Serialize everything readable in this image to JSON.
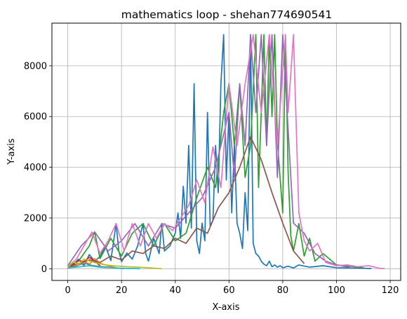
{
  "chart_data": {
    "type": "line",
    "title": "mathematics loop - shehan774690541",
    "xlabel": "X-axis",
    "ylabel": "Y-axis",
    "xlim": [
      -5.9,
      123.9
    ],
    "ylim": [
      -461,
      9682
    ],
    "xticks": [
      0,
      20,
      40,
      60,
      80,
      100,
      120
    ],
    "yticks": [
      0,
      2000,
      4000,
      6000,
      8000
    ],
    "grid": true,
    "legend": "none",
    "palette": [
      "#1f77b4",
      "#ff7f0e",
      "#2ca02c",
      "#d62728",
      "#9467bd",
      "#8c564b",
      "#e377c2",
      "#7f7f7f",
      "#bcbd22",
      "#17becf"
    ],
    "series": [
      {
        "color": "#1f77b4",
        "x": [
          0,
          2,
          4,
          6,
          8,
          10,
          12,
          14,
          16,
          18,
          19,
          20,
          22,
          24,
          26,
          28,
          29,
          30,
          32,
          34,
          35,
          36,
          38,
          40,
          41,
          42,
          43,
          44,
          45,
          46,
          47,
          48,
          49,
          50,
          51,
          52,
          53,
          54,
          55,
          56,
          57,
          58,
          59,
          60,
          61,
          62,
          63,
          64,
          65,
          66,
          67,
          68,
          69,
          70,
          71,
          72,
          73,
          74,
          75,
          76,
          77,
          78,
          79,
          80,
          82,
          84,
          86,
          90,
          95,
          100,
          105,
          110,
          113
        ],
        "y": [
          80,
          150,
          380,
          120,
          560,
          300,
          480,
          900,
          320,
          1780,
          700,
          280,
          620,
          380,
          900,
          1780,
          600,
          300,
          1200,
          600,
          1780,
          700,
          900,
          1400,
          2200,
          1200,
          3250,
          1800,
          4860,
          1600,
          7290,
          1100,
          600,
          1800,
          1100,
          6160,
          1700,
          1900,
          4860,
          3000,
          7290,
          9230,
          3500,
          6160,
          2200,
          4860,
          1800,
          1400,
          800,
          3000,
          1500,
          9230,
          1000,
          600,
          500,
          300,
          180,
          120,
          300,
          80,
          150,
          60,
          120,
          40,
          100,
          30,
          150,
          60,
          120,
          40,
          30,
          20,
          10
        ]
      },
      {
        "color": "#ff7f0e",
        "x": [
          0,
          2,
          3,
          4,
          6,
          8,
          10,
          12,
          14,
          16,
          18
        ],
        "y": [
          60,
          120,
          260,
          150,
          300,
          180,
          400,
          220,
          150,
          90,
          40
        ]
      },
      {
        "color": "#2ca02c",
        "x": [
          0,
          4,
          8,
          10,
          12,
          16,
          20,
          24,
          28,
          32,
          36,
          40,
          44,
          48,
          52,
          55,
          58,
          60,
          62,
          64,
          66,
          68,
          70,
          71,
          72,
          73,
          74,
          75,
          76,
          77,
          78,
          79,
          80,
          81,
          82,
          83,
          84,
          86,
          88,
          90,
          92,
          95,
          100,
          105,
          110
        ],
        "y": [
          100,
          300,
          900,
          1450,
          400,
          1200,
          500,
          1400,
          1780,
          900,
          1780,
          1100,
          1400,
          2800,
          4000,
          3200,
          6160,
          7290,
          4860,
          7290,
          3600,
          4860,
          9230,
          3200,
          6160,
          9230,
          4860,
          9230,
          6000,
          9230,
          5000,
          3600,
          2200,
          9230,
          3800,
          1300,
          700,
          1780,
          500,
          1200,
          300,
          600,
          150,
          100,
          40
        ]
      },
      {
        "color": "#d62728",
        "x": [
          0,
          2,
          4,
          6,
          8,
          10,
          12
        ],
        "y": [
          50,
          160,
          330,
          280,
          450,
          300,
          120
        ]
      },
      {
        "color": "#9467bd",
        "x": [
          0,
          5,
          10,
          15,
          20,
          25,
          30,
          35,
          40,
          45,
          50,
          55,
          60,
          62,
          64,
          66,
          68,
          70,
          72,
          74,
          76,
          78,
          80,
          84,
          88,
          92,
          96,
          100,
          105
        ],
        "y": [
          120,
          900,
          1450,
          700,
          1100,
          1780,
          900,
          1780,
          1600,
          2200,
          2800,
          4000,
          6160,
          3600,
          7290,
          4860,
          9230,
          6160,
          9230,
          4860,
          9230,
          3600,
          9230,
          1800,
          1400,
          600,
          300,
          150,
          50
        ]
      },
      {
        "color": "#8c564b",
        "x": [
          0,
          4,
          8,
          12,
          16,
          20,
          24,
          28,
          32,
          36,
          40,
          44,
          48,
          52,
          56,
          60,
          64,
          68,
          72,
          76,
          80,
          84,
          88
        ],
        "y": [
          50,
          200,
          350,
          250,
          500,
          350,
          700,
          600,
          900,
          800,
          1200,
          1000,
          1600,
          1400,
          2400,
          3000,
          4000,
          5200,
          4300,
          3000,
          1800,
          700,
          200
        ]
      },
      {
        "color": "#e377c2",
        "x": [
          0,
          3,
          6,
          9,
          12,
          15,
          18,
          21,
          24,
          27,
          30,
          33,
          36,
          39,
          42,
          45,
          48,
          51,
          54,
          57,
          60,
          63,
          66,
          69,
          72,
          75,
          78,
          81,
          82,
          84,
          86,
          88,
          90,
          93,
          96,
          100,
          104,
          108,
          112,
          116,
          118
        ],
        "y": [
          100,
          350,
          900,
          1450,
          600,
          1100,
          1780,
          700,
          1780,
          900,
          1780,
          1200,
          1780,
          1500,
          2000,
          2500,
          3500,
          2600,
          4800,
          3200,
          7290,
          4860,
          7290,
          9230,
          6160,
          9230,
          4860,
          9230,
          6160,
          9230,
          2200,
          1100,
          700,
          1000,
          250,
          120,
          150,
          80,
          120,
          20,
          0
        ]
      },
      {
        "color": "#7f7f7f",
        "x": [
          0,
          3,
          6,
          9,
          12,
          15,
          18,
          21
        ],
        "y": [
          40,
          100,
          220,
          130,
          90,
          60,
          30,
          0
        ]
      },
      {
        "color": "#bcbd22",
        "x": [
          0,
          2,
          4,
          6,
          10,
          14,
          18,
          22,
          26,
          30,
          35
        ],
        "y": [
          50,
          280,
          160,
          380,
          240,
          150,
          110,
          80,
          60,
          40,
          0
        ]
      },
      {
        "color": "#17becf",
        "x": [
          0,
          4,
          8,
          12,
          16,
          20,
          24,
          27
        ],
        "y": [
          30,
          70,
          120,
          60,
          40,
          20,
          10,
          0
        ]
      }
    ]
  }
}
